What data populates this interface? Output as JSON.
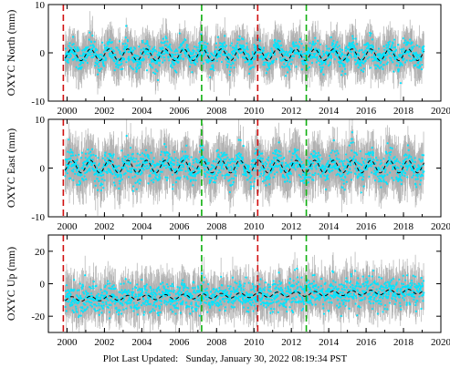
{
  "footer_text": "Plot Last Updated:   Sunday, January 30, 2022 08:19:34 PST",
  "colors": {
    "observations": "#00e5ff",
    "error_bars": "#b0b0b0",
    "model": "#000000",
    "red_lines": "#d01010",
    "green_lines": "#10b010"
  },
  "chart_data": [
    {
      "type": "scatter",
      "panel": "north",
      "ylabel": "OXYC North (mm)",
      "xlim": [
        1999,
        2020
      ],
      "ylim": [
        -10,
        10
      ],
      "xticks": [
        2000,
        2002,
        2004,
        2006,
        2008,
        2010,
        2012,
        2014,
        2016,
        2018,
        2020
      ],
      "yticks": [
        -10,
        0,
        10
      ],
      "data_span": [
        1999.9,
        2019.1
      ],
      "scatter_sd": 1.3,
      "error_bar_half": 3.0,
      "seasonal_amplitude": 1.2,
      "trend_per_year": 0,
      "offset": -0.4,
      "red_lines": [
        1999.8,
        2010.2
      ],
      "green_lines": [
        2007.2,
        2012.8
      ]
    },
    {
      "type": "scatter",
      "panel": "east",
      "ylabel": "OXYC East (mm)",
      "xlim": [
        1999,
        2020
      ],
      "ylim": [
        -10,
        10
      ],
      "xticks": [
        2000,
        2002,
        2004,
        2006,
        2008,
        2010,
        2012,
        2014,
        2016,
        2018,
        2020
      ],
      "yticks": [
        -10,
        0,
        10
      ],
      "data_span": [
        1999.9,
        2019.1
      ],
      "scatter_sd": 1.5,
      "error_bar_half": 3.5,
      "seasonal_amplitude": 1.3,
      "trend_per_year": 0,
      "offset": 0.3,
      "red_lines": [
        1999.8,
        2010.2
      ],
      "green_lines": [
        2007.2,
        2012.8
      ]
    },
    {
      "type": "scatter",
      "panel": "up",
      "ylabel": "OXYC Up (mm)",
      "xlim": [
        1999,
        2020
      ],
      "ylim": [
        -30,
        30
      ],
      "xticks": [
        2000,
        2002,
        2004,
        2006,
        2008,
        2010,
        2012,
        2014,
        2016,
        2018,
        2020
      ],
      "yticks": [
        -20,
        0,
        20
      ],
      "data_span": [
        1999.9,
        2019.1
      ],
      "scatter_sd": 4.5,
      "error_bar_half": 9.0,
      "seasonal_amplitude": 1.5,
      "trend_per_year": 0.25,
      "offset": -7,
      "red_lines": [
        1999.8,
        2010.2
      ],
      "green_lines": [
        2007.2,
        2012.8
      ]
    }
  ]
}
